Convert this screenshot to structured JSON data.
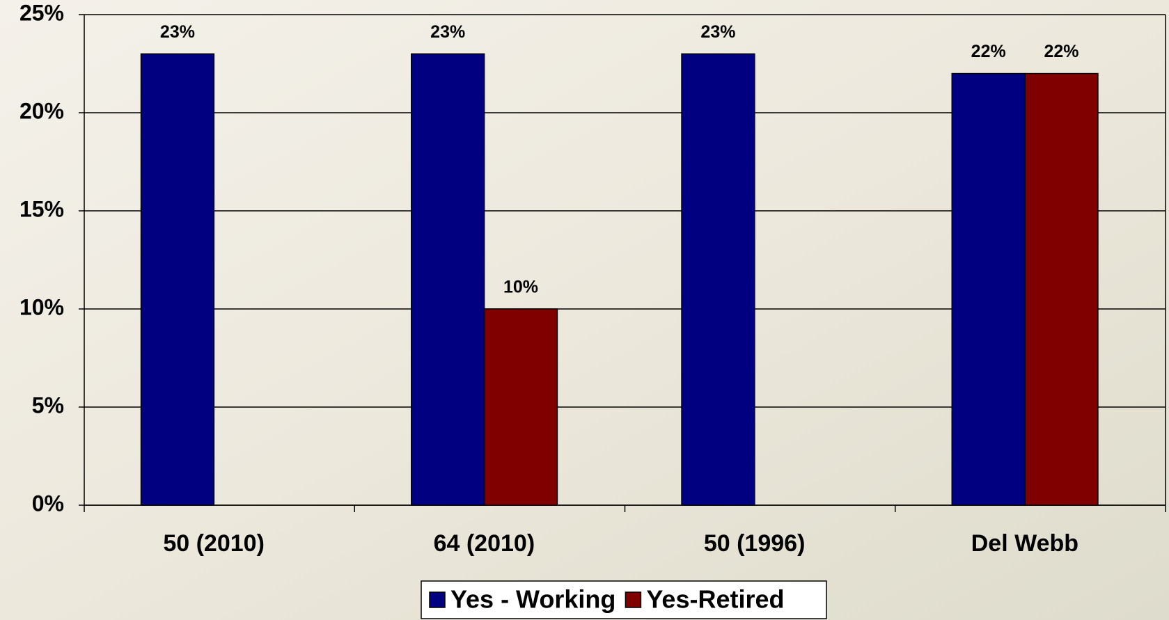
{
  "chart_data": {
    "type": "bar",
    "categories": [
      "50 (2010)",
      "64 (2010)",
      "50 (1996)",
      "Del Webb"
    ],
    "series": [
      {
        "name": "Yes - Working",
        "color": "#000080",
        "values": [
          23,
          23,
          23,
          22
        ],
        "value_labels": [
          "23%",
          "23%",
          "23%",
          "22%"
        ]
      },
      {
        "name": "Yes-Retired",
        "color": "#800000",
        "values": [
          null,
          10,
          null,
          22
        ],
        "value_labels": [
          null,
          "10%",
          null,
          "22%"
        ]
      }
    ],
    "ylim": [
      0,
      25
    ],
    "yticks": [
      {
        "value": 0,
        "label": "0%"
      },
      {
        "value": 5,
        "label": "5%"
      },
      {
        "value": 10,
        "label": "10%"
      },
      {
        "value": 15,
        "label": "15%"
      },
      {
        "value": 20,
        "label": "20%"
      },
      {
        "value": 25,
        "label": "25%"
      }
    ],
    "grid": true,
    "legend": "bottom"
  }
}
